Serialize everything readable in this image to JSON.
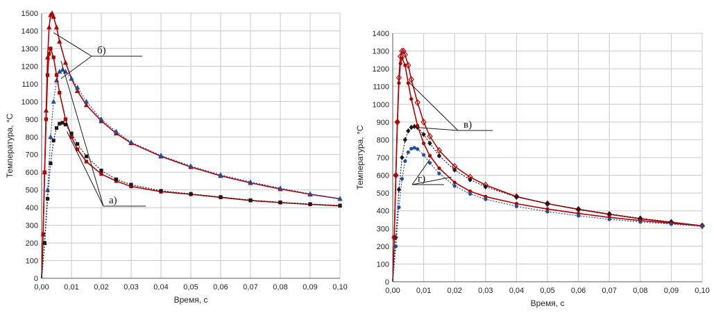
{
  "chart_data": [
    {
      "type": "line",
      "title": "",
      "xlabel": "Время, с",
      "ylabel": "Температура, °С",
      "xlim": [
        0,
        0.1
      ],
      "ylim": [
        0,
        1500
      ],
      "xticks": [
        "0,00",
        "0,01",
        "0,02",
        "0,03",
        "0,04",
        "0,05",
        "0,06",
        "0,07",
        "0,08",
        "0,09",
        "0,10"
      ],
      "yticks": [
        "0",
        "100",
        "200",
        "300",
        "400",
        "500",
        "600",
        "700",
        "800",
        "900",
        "1000",
        "1100",
        "1200",
        "1300",
        "1400",
        "1500"
      ],
      "grid": true,
      "legend": "none",
      "annotations": [
        {
          "text": "б)",
          "anchor": [
            0.0175,
            1305
          ]
        },
        {
          "text": "а)",
          "anchor": [
            0.0265,
            445
          ]
        }
      ],
      "series": [
        {
          "color": "#b00000",
          "marker": "triangle",
          "points": [
            [
              0,
              0
            ],
            [
              0.0005,
              250
            ],
            [
              0.001,
              600
            ],
            [
              0.0015,
              950
            ],
            [
              0.002,
              1250
            ],
            [
              0.0025,
              1420
            ],
            [
              0.003,
              1490
            ],
            [
              0.0035,
              1500
            ],
            [
              0.004,
              1480
            ],
            [
              0.005,
              1420
            ],
            [
              0.006,
              1340
            ],
            [
              0.008,
              1220
            ],
            [
              0.01,
              1130
            ],
            [
              0.012,
              1060
            ],
            [
              0.015,
              980
            ],
            [
              0.02,
              890
            ],
            [
              0.025,
              820
            ],
            [
              0.03,
              765
            ],
            [
              0.04,
              690
            ],
            [
              0.05,
              630
            ],
            [
              0.06,
              580
            ],
            [
              0.07,
              540
            ],
            [
              0.08,
              505
            ],
            [
              0.09,
              475
            ],
            [
              0.1,
              450
            ]
          ]
        },
        {
          "color": "#1f4e9c",
          "marker": "triangle",
          "points": [
            [
              0,
              0
            ],
            [
              0.001,
              200
            ],
            [
              0.002,
              500
            ],
            [
              0.003,
              800
            ],
            [
              0.004,
              1000
            ],
            [
              0.005,
              1120
            ],
            [
              0.006,
              1170
            ],
            [
              0.007,
              1180
            ],
            [
              0.008,
              1170
            ],
            [
              0.01,
              1130
            ],
            [
              0.012,
              1080
            ],
            [
              0.015,
              1000
            ],
            [
              0.02,
              900
            ],
            [
              0.025,
              830
            ],
            [
              0.03,
              770
            ],
            [
              0.04,
              695
            ],
            [
              0.05,
              635
            ],
            [
              0.06,
              585
            ],
            [
              0.07,
              545
            ],
            [
              0.08,
              510
            ],
            [
              0.09,
              478
            ],
            [
              0.1,
              450
            ]
          ]
        },
        {
          "color": "#b00000",
          "marker": "square",
          "points": [
            [
              0,
              0
            ],
            [
              0.0005,
              250
            ],
            [
              0.001,
              600
            ],
            [
              0.0015,
              900
            ],
            [
              0.002,
              1150
            ],
            [
              0.0025,
              1270
            ],
            [
              0.003,
              1300
            ],
            [
              0.004,
              1250
            ],
            [
              0.005,
              1150
            ],
            [
              0.006,
              1050
            ],
            [
              0.008,
              900
            ],
            [
              0.01,
              800
            ],
            [
              0.012,
              730
            ],
            [
              0.015,
              660
            ],
            [
              0.02,
              590
            ],
            [
              0.025,
              550
            ],
            [
              0.03,
              520
            ],
            [
              0.04,
              490
            ],
            [
              0.05,
              475
            ],
            [
              0.06,
              458
            ],
            [
              0.07,
              440
            ],
            [
              0.08,
              428
            ],
            [
              0.09,
              418
            ],
            [
              0.1,
              410
            ]
          ]
        },
        {
          "color": "#1a1a1a",
          "marker": "square",
          "points": [
            [
              0,
              0
            ],
            [
              0.001,
              200
            ],
            [
              0.002,
              450
            ],
            [
              0.003,
              650
            ],
            [
              0.004,
              780
            ],
            [
              0.005,
              850
            ],
            [
              0.006,
              875
            ],
            [
              0.007,
              880
            ],
            [
              0.008,
              870
            ],
            [
              0.01,
              820
            ],
            [
              0.012,
              760
            ],
            [
              0.015,
              690
            ],
            [
              0.02,
              610
            ],
            [
              0.025,
              560
            ],
            [
              0.03,
              530
            ],
            [
              0.04,
              495
            ],
            [
              0.05,
              478
            ],
            [
              0.06,
              460
            ],
            [
              0.07,
              442
            ],
            [
              0.08,
              430
            ],
            [
              0.09,
              420
            ],
            [
              0.1,
              412
            ]
          ]
        }
      ]
    },
    {
      "type": "line",
      "title": "",
      "xlabel": "Время, с",
      "ylabel": "Температура, °С",
      "xlim": [
        0,
        0.1
      ],
      "ylim": [
        0,
        1400
      ],
      "xticks": [
        "0,00",
        "0,01",
        "0,02",
        "0,03",
        "0,04",
        "0,05",
        "0,06",
        "0,07",
        "0,08",
        "0,09",
        "0,10"
      ],
      "yticks": [
        "0",
        "100",
        "200",
        "300",
        "400",
        "500",
        "600",
        "700",
        "800",
        "900",
        "1000",
        "1100",
        "1200",
        "1300",
        "1400"
      ],
      "grid": true,
      "legend": "none",
      "annotations": [
        {
          "text": "в)",
          "anchor": [
            0.0225,
            870
          ]
        },
        {
          "text": "г)",
          "anchor": [
            0.0095,
            580
          ]
        }
      ],
      "series": [
        {
          "color": "#b00000",
          "marker": "diamond-open",
          "points": [
            [
              0,
              0
            ],
            [
              0.0005,
              250
            ],
            [
              0.001,
              600
            ],
            [
              0.0015,
              900
            ],
            [
              0.002,
              1150
            ],
            [
              0.0025,
              1270
            ],
            [
              0.003,
              1300
            ],
            [
              0.0035,
              1300
            ],
            [
              0.004,
              1280
            ],
            [
              0.005,
              1220
            ],
            [
              0.006,
              1140
            ],
            [
              0.008,
              1010
            ],
            [
              0.01,
              900
            ],
            [
              0.012,
              820
            ],
            [
              0.015,
              740
            ],
            [
              0.02,
              650
            ],
            [
              0.025,
              590
            ],
            [
              0.03,
              545
            ],
            [
              0.04,
              480
            ],
            [
              0.05,
              440
            ],
            [
              0.06,
              408
            ],
            [
              0.07,
              380
            ],
            [
              0.08,
              355
            ],
            [
              0.09,
              335
            ],
            [
              0.1,
              315
            ]
          ]
        },
        {
          "color": "#1a1a1a",
          "marker": "diamond",
          "points": [
            [
              0,
              0
            ],
            [
              0.001,
              250
            ],
            [
              0.002,
              520
            ],
            [
              0.003,
              700
            ],
            [
              0.004,
              800
            ],
            [
              0.005,
              850
            ],
            [
              0.006,
              870
            ],
            [
              0.007,
              875
            ],
            [
              0.008,
              870
            ],
            [
              0.01,
              830
            ],
            [
              0.012,
              780
            ],
            [
              0.015,
              710
            ],
            [
              0.02,
              630
            ],
            [
              0.025,
              575
            ],
            [
              0.03,
              535
            ],
            [
              0.04,
              478
            ],
            [
              0.05,
              440
            ],
            [
              0.06,
              410
            ],
            [
              0.07,
              382
            ],
            [
              0.08,
              357
            ],
            [
              0.09,
              337
            ],
            [
              0.1,
              315
            ]
          ]
        },
        {
          "color": "#b00000",
          "marker": "circle",
          "points": [
            [
              0,
              0
            ],
            [
              0.0005,
              250
            ],
            [
              0.001,
              600
            ],
            [
              0.0015,
              900
            ],
            [
              0.002,
              1120
            ],
            [
              0.0025,
              1230
            ],
            [
              0.003,
              1260
            ],
            [
              0.004,
              1220
            ],
            [
              0.005,
              1120
            ],
            [
              0.006,
              1030
            ],
            [
              0.008,
              880
            ],
            [
              0.01,
              780
            ],
            [
              0.012,
              710
            ],
            [
              0.015,
              640
            ],
            [
              0.02,
              560
            ],
            [
              0.025,
              510
            ],
            [
              0.03,
              480
            ],
            [
              0.04,
              440
            ],
            [
              0.05,
              410
            ],
            [
              0.06,
              385
            ],
            [
              0.07,
              363
            ],
            [
              0.08,
              345
            ],
            [
              0.09,
              330
            ],
            [
              0.1,
              315
            ]
          ]
        },
        {
          "color": "#1f4e9c",
          "marker": "circle",
          "points": [
            [
              0,
              0
            ],
            [
              0.001,
              200
            ],
            [
              0.002,
              420
            ],
            [
              0.003,
              580
            ],
            [
              0.004,
              680
            ],
            [
              0.005,
              730
            ],
            [
              0.006,
              750
            ],
            [
              0.007,
              755
            ],
            [
              0.008,
              748
            ],
            [
              0.01,
              715
            ],
            [
              0.012,
              670
            ],
            [
              0.015,
              610
            ],
            [
              0.02,
              540
            ],
            [
              0.025,
              495
            ],
            [
              0.03,
              465
            ],
            [
              0.04,
              425
            ],
            [
              0.05,
              395
            ],
            [
              0.06,
              372
            ],
            [
              0.07,
              352
            ],
            [
              0.08,
              337
            ],
            [
              0.09,
              325
            ],
            [
              0.1,
              312
            ]
          ]
        }
      ]
    }
  ]
}
